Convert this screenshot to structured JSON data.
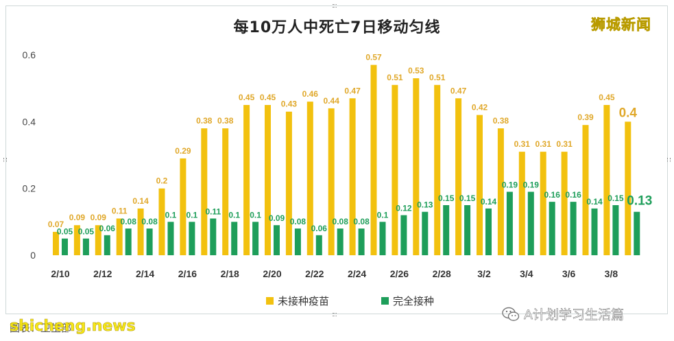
{
  "header": {
    "title": "每10万人中死亡7日移动匀线",
    "brand": "狮城新闻"
  },
  "legend": {
    "unvax_label": "未接种疫苗",
    "full_label": "完全接种"
  },
  "footer": {
    "caption": "图表：卫生部",
    "site_watermark": "shicheng.news",
    "wechat_source": "A计划学习生活篇"
  },
  "colors": {
    "unvaccinated": "#f2c10f",
    "fully_vaccinated": "#1e9e5a",
    "unvax_label": "#e0a82a",
    "full_label": "#1e9e5a"
  },
  "chart_data": {
    "type": "bar",
    "title": "每10万人中死亡7日移动匀线",
    "xlabel": "",
    "ylabel": "",
    "ylim": [
      0,
      0.6
    ],
    "yticks": [
      "0",
      "0.2",
      "0.4",
      "0.6"
    ],
    "grid": false,
    "legend_position": "bottom",
    "categories": [
      "2/10",
      "2/11",
      "2/12",
      "2/13",
      "2/14",
      "2/15",
      "2/16",
      "2/17",
      "2/18",
      "2/19",
      "2/20",
      "2/21",
      "2/22",
      "2/23",
      "2/24",
      "2/25",
      "2/26",
      "2/27",
      "2/28",
      "3/1",
      "3/2",
      "3/3",
      "3/4",
      "3/5",
      "3/6",
      "3/7",
      "3/8",
      "3/9"
    ],
    "xtick_labels": [
      "2/10",
      "",
      "2/12",
      "",
      "2/14",
      "",
      "2/16",
      "",
      "2/18",
      "",
      "2/20",
      "",
      "2/22",
      "",
      "2/24",
      "",
      "2/26",
      "",
      "2/28",
      "",
      "3/2",
      "",
      "3/4",
      "",
      "3/6",
      "",
      "3/8",
      ""
    ],
    "series": [
      {
        "name": "未接种疫苗",
        "values": [
          0.07,
          0.09,
          0.09,
          0.11,
          0.14,
          0.2,
          0.29,
          0.38,
          0.38,
          0.45,
          0.45,
          0.43,
          0.46,
          0.44,
          0.47,
          0.57,
          0.51,
          0.53,
          0.51,
          0.47,
          0.42,
          0.38,
          0.31,
          0.31,
          0.31,
          0.39,
          0.45,
          0.4
        ]
      },
      {
        "name": "完全接种",
        "values": [
          0.05,
          0.05,
          0.06,
          0.08,
          0.08,
          0.1,
          0.1,
          0.11,
          0.1,
          0.1,
          0.09,
          0.08,
          0.06,
          0.08,
          0.08,
          0.1,
          0.12,
          0.13,
          0.15,
          0.15,
          0.14,
          0.19,
          0.19,
          0.16,
          0.16,
          0.14,
          0.15,
          0.13
        ]
      }
    ]
  }
}
